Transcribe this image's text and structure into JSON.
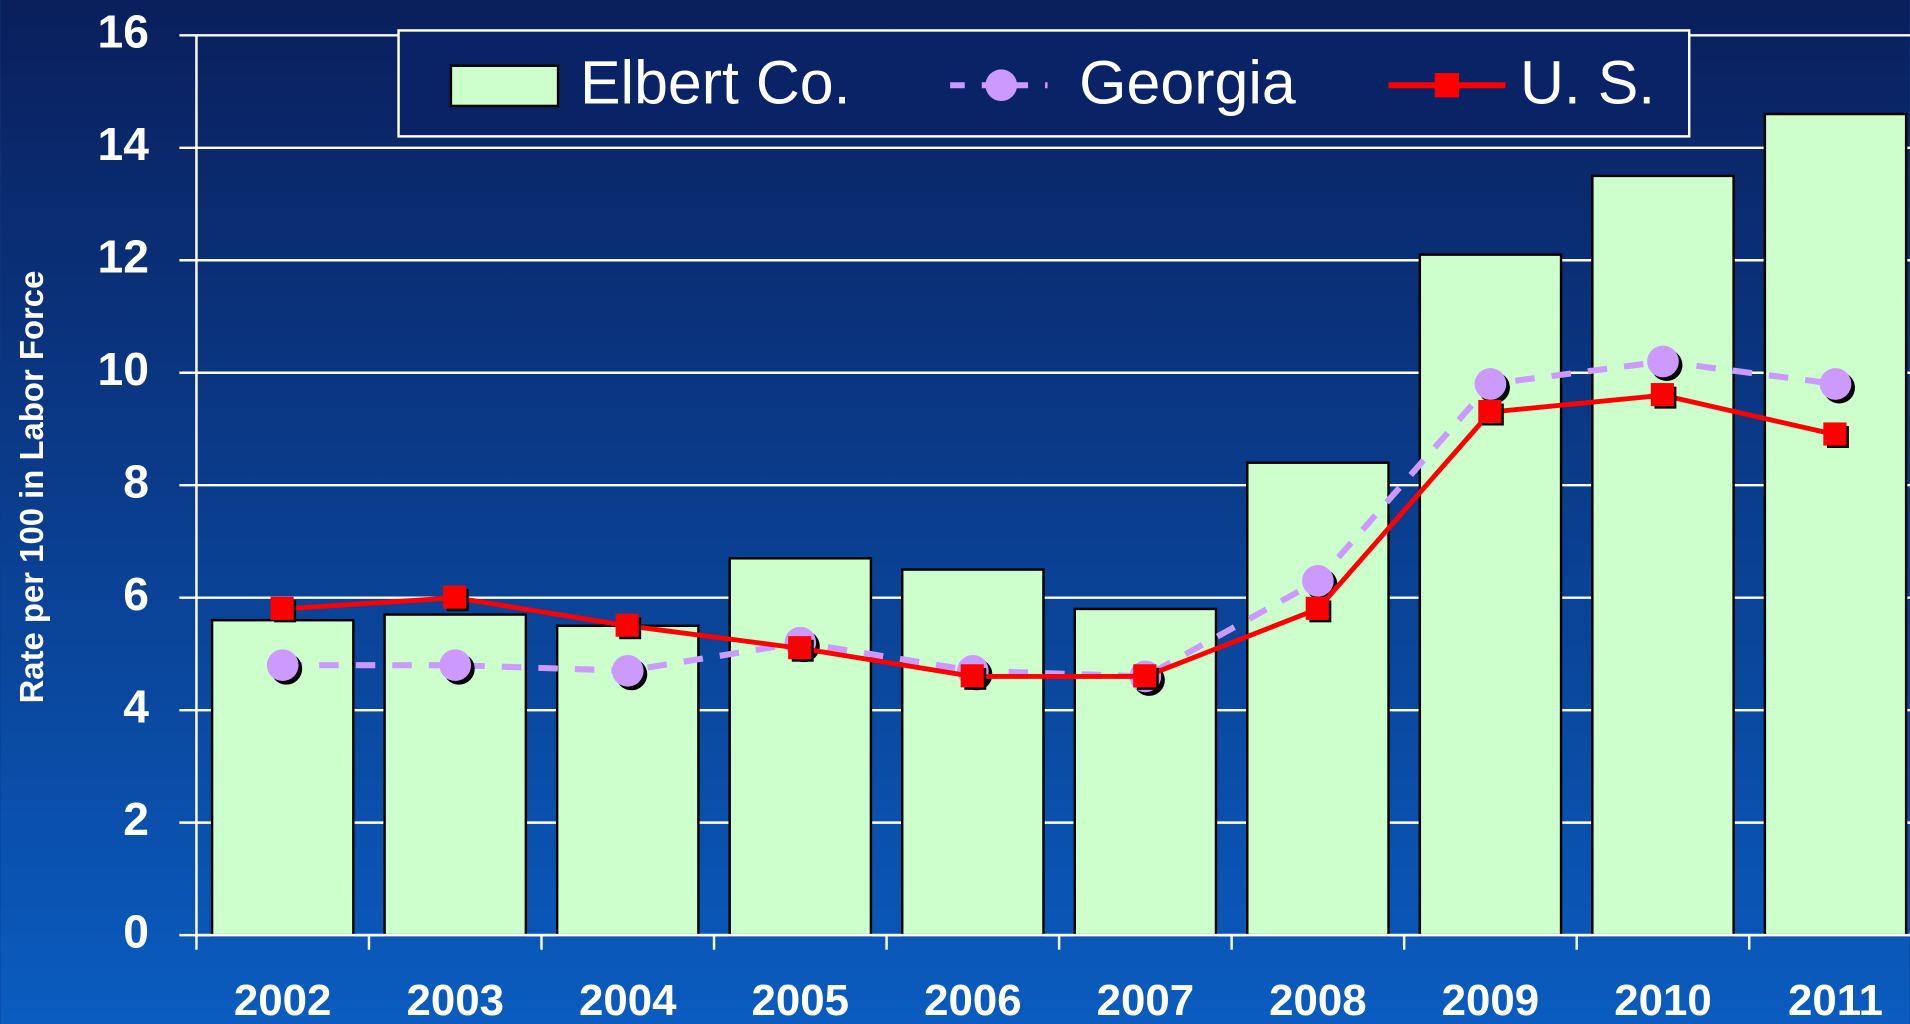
{
  "chart_data": {
    "type": "bar-line",
    "y_label": "Rate per 100 in Labor Force",
    "categories": [
      "2002",
      "2003",
      "2004",
      "2005",
      "2006",
      "2007",
      "2008",
      "2009",
      "2010",
      "2011"
    ],
    "series": [
      {
        "name": "Elbert Co.",
        "kind": "bar",
        "color": "#ccffcc",
        "values": [
          5.6,
          5.7,
          5.5,
          6.7,
          6.5,
          5.8,
          8.4,
          12.1,
          13.5,
          14.6
        ]
      },
      {
        "name": "Georgia",
        "kind": "dashed-line",
        "color": "#cc99ff",
        "values": [
          4.8,
          4.8,
          4.7,
          5.2,
          4.7,
          4.6,
          6.3,
          9.8,
          10.2,
          9.8
        ]
      },
      {
        "name": "U. S.",
        "kind": "line",
        "color": "#ff0000",
        "values": [
          5.8,
          6.0,
          5.5,
          5.1,
          4.6,
          4.6,
          5.8,
          9.3,
          9.6,
          8.9
        ]
      }
    ],
    "ylim": [
      0,
      16
    ],
    "yticks": [
      0,
      2,
      4,
      6,
      8,
      10,
      12,
      14,
      16
    ],
    "grid": true
  }
}
